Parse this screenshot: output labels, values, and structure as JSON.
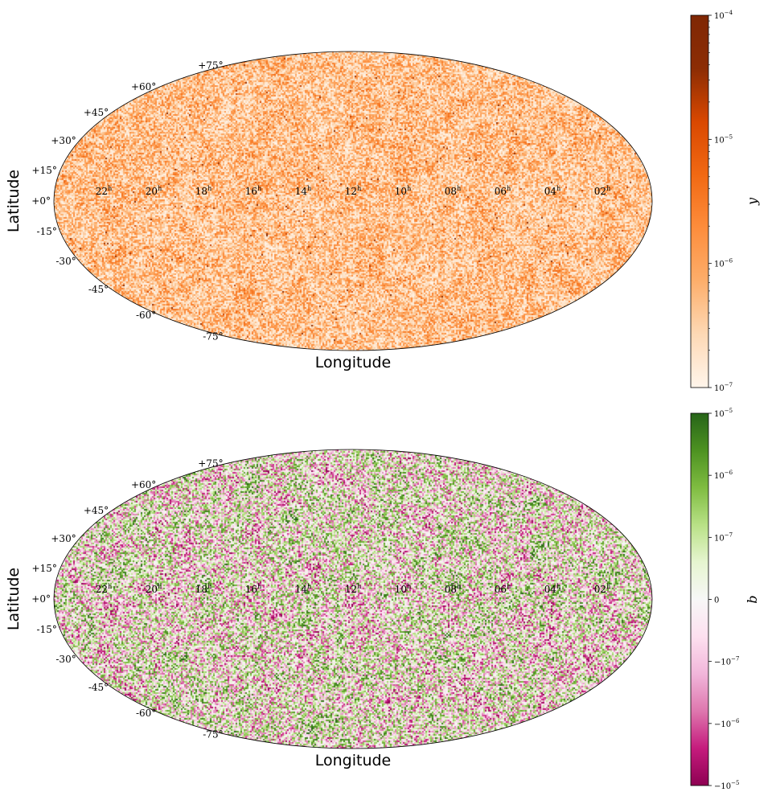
{
  "chart_data": [
    {
      "type": "heatmap",
      "projection": "mollweide",
      "title": "",
      "xlabel": "Longitude",
      "ylabel": "Latitude",
      "lat_ticks": [
        "+75°",
        "+60°",
        "+45°",
        "+30°",
        "+15°",
        "+0°",
        "-15°",
        "-30°",
        "-45°",
        "-60°",
        "-75°"
      ],
      "lat_values": [
        75,
        60,
        45,
        30,
        15,
        0,
        -15,
        -30,
        -45,
        -60,
        -75
      ],
      "lon_ticks": [
        "22",
        "20",
        "18",
        "16",
        "14",
        "12",
        "10",
        "08",
        "06",
        "04",
        "02"
      ],
      "lon_unit": "h",
      "colorbar": {
        "label": "y",
        "scale": "log",
        "range": [
          1e-07,
          0.0001
        ],
        "tick_labels": [
          "10",
          "10",
          "10",
          "10"
        ],
        "tick_exponents": [
          "−4",
          "−5",
          "−6",
          "−7"
        ],
        "colors": [
          "#fff5eb",
          "#fdd9b5",
          "#fdae6b",
          "#fd8d3c",
          "#f16913",
          "#d94801",
          "#8c2d04",
          "#7f2704"
        ]
      },
      "grid": false
    },
    {
      "type": "heatmap",
      "projection": "mollweide",
      "title": "",
      "xlabel": "Longitude",
      "ylabel": "Latitude",
      "lat_ticks": [
        "+75°",
        "+60°",
        "+45°",
        "+30°",
        "+15°",
        "+0°",
        "-15°",
        "-30°",
        "-45°",
        "-60°",
        "-75°"
      ],
      "lat_values": [
        75,
        60,
        45,
        30,
        15,
        0,
        -15,
        -30,
        -45,
        -60,
        -75
      ],
      "lon_ticks": [
        "22",
        "20",
        "18",
        "16",
        "14",
        "12",
        "10",
        "08",
        "06",
        "04",
        "02"
      ],
      "lon_unit": "h",
      "colorbar": {
        "label": "b",
        "scale": "symlog",
        "range": [
          -1e-05,
          1e-05
        ],
        "tick_labels": [
          "10",
          "10",
          "10",
          "0",
          "−10",
          "−10",
          "−10"
        ],
        "tick_exponents": [
          "−5",
          "−6",
          "−7",
          "",
          "−7",
          "−6",
          "−5"
        ],
        "colors": [
          "#8e0152",
          "#c51b7d",
          "#de77ae",
          "#f1b6da",
          "#fde0ef",
          "#f7f7f7",
          "#e6f5d0",
          "#b8e186",
          "#7fbc41",
          "#4d9221",
          "#276419"
        ]
      },
      "grid": false
    }
  ]
}
